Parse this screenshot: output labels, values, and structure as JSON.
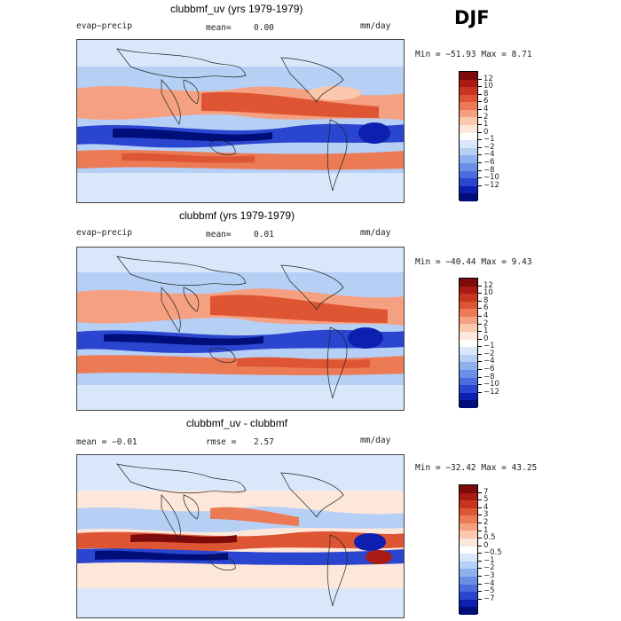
{
  "season": "DJF",
  "panels": [
    {
      "title": "clubbmf_uv (yrs 1979-1979)",
      "left_label": "evap−precip",
      "center_label": "mean=",
      "center_value": "0.00",
      "units": "mm/day",
      "stats": "Min = −51.93  Max =    8.71",
      "levels": [
        "12",
        "10",
        "8",
        "6",
        "4",
        "2",
        "1",
        "0",
        "−1",
        "−2",
        "−4",
        "−6",
        "−8",
        "−10",
        "−12"
      ],
      "colors": [
        "#7d0b0b",
        "#a81a12",
        "#c93420",
        "#de5533",
        "#ec7a55",
        "#f5a080",
        "#fbc8ad",
        "#fde7da",
        "#ffffff",
        "#d9e7fb",
        "#b6cff5",
        "#8eb1ee",
        "#6b8fe6",
        "#4a6cdc",
        "#2a45cf",
        "#0d1fb0",
        "#000e7a"
      ]
    },
    {
      "title": "clubbmf (yrs 1979-1979)",
      "left_label": "evap−precip",
      "center_label": "mean=",
      "center_value": "0.01",
      "units": "mm/day",
      "stats": "Min = −40.44  Max =    9.43",
      "levels": [
        "12",
        "10",
        "8",
        "6",
        "4",
        "2",
        "1",
        "0",
        "−1",
        "−2",
        "−4",
        "−6",
        "−8",
        "−10",
        "−12"
      ],
      "colors": [
        "#7d0b0b",
        "#a81a12",
        "#c93420",
        "#de5533",
        "#ec7a55",
        "#f5a080",
        "#fbc8ad",
        "#fde7da",
        "#ffffff",
        "#d9e7fb",
        "#b6cff5",
        "#8eb1ee",
        "#6b8fe6",
        "#4a6cdc",
        "#2a45cf",
        "#0d1fb0",
        "#000e7a"
      ]
    },
    {
      "title": "clubbmf_uv - clubbmf",
      "left_label": "mean =   −0.01",
      "center_label": "rmse =",
      "center_value": "2.57",
      "units": "mm/day",
      "stats": "Min = −32.42  Max =   43.25",
      "levels": [
        "7",
        "5",
        "4",
        "3",
        "2",
        "1",
        "0.5",
        "0",
        "−0.5",
        "−1",
        "−2",
        "−3",
        "−4",
        "−5",
        "−7"
      ],
      "colors": [
        "#7d0b0b",
        "#a81a12",
        "#c93420",
        "#de5533",
        "#ec7a55",
        "#f5a080",
        "#fbc8ad",
        "#fde7da",
        "#ffffff",
        "#d9e7fb",
        "#b6cff5",
        "#8eb1ee",
        "#6b8fe6",
        "#4a6cdc",
        "#2a45cf",
        "#0d1fb0",
        "#000e7a"
      ]
    }
  ]
}
